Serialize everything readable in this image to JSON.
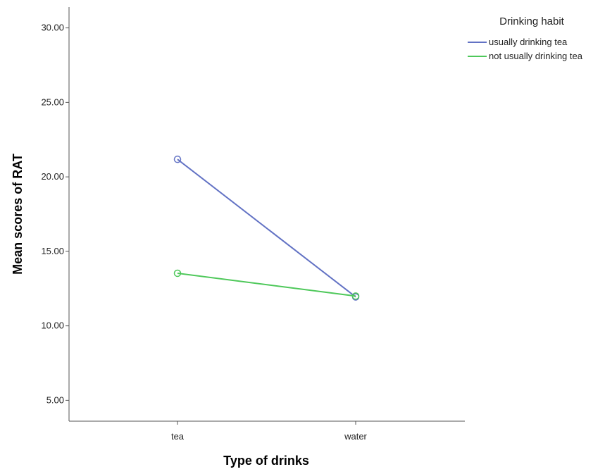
{
  "chart_data": {
    "type": "line",
    "title": "",
    "xlabel": "Type of drinks",
    "ylabel": "Mean scores of RAT",
    "categories": [
      "tea",
      "water"
    ],
    "yticks": [
      "5.00",
      "10.00",
      "15.00",
      "20.00",
      "25.00",
      "30.00"
    ],
    "ylim": [
      3.6,
      31.4
    ],
    "grid": false,
    "legend": {
      "title": "Drinking habit",
      "position": "top-right"
    },
    "series": [
      {
        "name": "usually drinking tea",
        "color": "#6272c4",
        "values": [
          21.18,
          11.94
        ]
      },
      {
        "name": "not usually drinking tea",
        "color": "#4ec85a",
        "values": [
          13.53,
          12.0
        ]
      }
    ]
  }
}
